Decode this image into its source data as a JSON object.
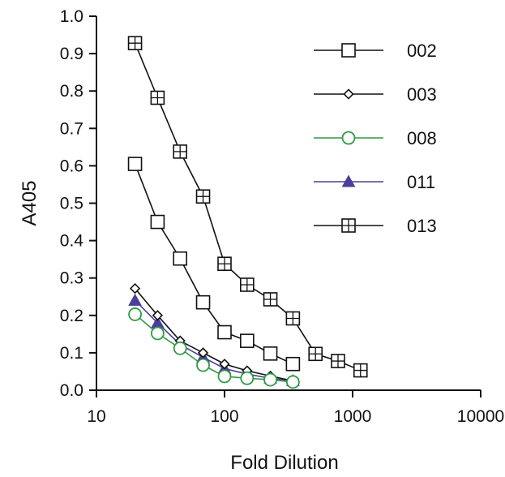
{
  "chart_data": {
    "type": "line",
    "xlabel": "Fold Dilution",
    "ylabel": "A405",
    "x_scale": "log",
    "xlim": [
      10,
      10000
    ],
    "ylim": [
      0,
      1.0
    ],
    "x_ticks": [
      10,
      100,
      1000,
      10000
    ],
    "x_tick_labels": [
      "10",
      "100",
      "1000",
      "10000"
    ],
    "y_ticks": [
      0,
      0.1,
      0.2,
      0.3,
      0.4,
      0.5,
      0.6,
      0.7,
      0.8,
      0.9,
      1.0
    ],
    "y_tick_labels": [
      "0.0",
      "0.1",
      "0.2",
      "0.3",
      "0.4",
      "0.5",
      "0.6",
      "0.7",
      "0.8",
      "0.9",
      "1.0"
    ],
    "grid": false,
    "legend_position": "top-right",
    "series": [
      {
        "name": "002",
        "marker": "square",
        "color": "#111111",
        "x": [
          20,
          30,
          45,
          68,
          100,
          150,
          228,
          342
        ],
        "y": [
          0.605,
          0.45,
          0.352,
          0.235,
          0.155,
          0.132,
          0.098,
          0.07
        ]
      },
      {
        "name": "003",
        "marker": "diamond",
        "color": "#111111",
        "x": [
          20,
          30,
          45,
          68,
          100,
          150,
          228,
          342
        ],
        "y": [
          0.272,
          0.2,
          0.132,
          0.1,
          0.07,
          0.052,
          0.038,
          0.025
        ]
      },
      {
        "name": "008",
        "marker": "circle",
        "color": "#2e9a44",
        "x": [
          20,
          30,
          45,
          68,
          100,
          150,
          228,
          342
        ],
        "y": [
          0.203,
          0.152,
          0.112,
          0.067,
          0.037,
          0.032,
          0.028,
          0.022
        ]
      },
      {
        "name": "011",
        "marker": "triangle",
        "color": "#4a3e99",
        "x": [
          20,
          30,
          45,
          68,
          100,
          150,
          228,
          342
        ],
        "y": [
          0.24,
          0.18,
          0.122,
          0.088,
          0.058,
          0.043,
          0.032,
          0.025
        ]
      },
      {
        "name": "013",
        "marker": "boxplus",
        "color": "#111111",
        "x": [
          20,
          30,
          45,
          68,
          100,
          150,
          228,
          342,
          513,
          769,
          1153
        ],
        "y": [
          0.928,
          0.782,
          0.638,
          0.518,
          0.338,
          0.282,
          0.243,
          0.192,
          0.097,
          0.078,
          0.053
        ]
      }
    ]
  }
}
